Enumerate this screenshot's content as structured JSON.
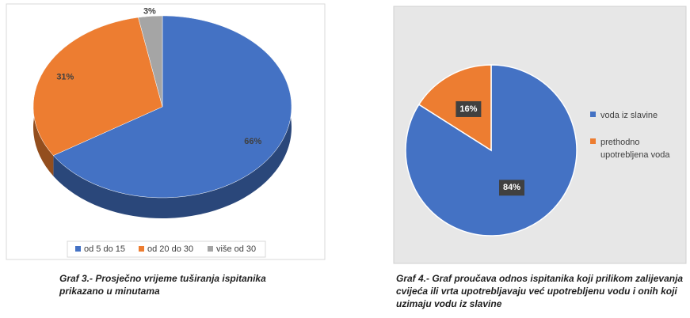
{
  "chart_data": [
    {
      "type": "pie3d",
      "categories": [
        "od 5 do 15",
        "od 20 do 30",
        "više od 30"
      ],
      "values": [
        66,
        31,
        3
      ],
      "value_labels": [
        "66%",
        "31%",
        "3%"
      ],
      "colors": [
        "#4472c4",
        "#ed7d31",
        "#a5a5a5"
      ],
      "legend": "bottom",
      "caption": "Graf 3.- Prosječno vrijeme tuširanja ispitanika prikazano u minutama"
    },
    {
      "type": "pie",
      "categories": [
        "voda iz slavine",
        "prethodno upotrebljena voda"
      ],
      "values": [
        84,
        16
      ],
      "value_labels": [
        "84%",
        "16%"
      ],
      "colors": [
        "#4472c4",
        "#ed7d31"
      ],
      "legend": "right",
      "caption": "Graf 4.- Graf proučava odnos ispitanika koji prilikom zalijevanja cvijeća ili vrta upotrebljavaju već upotrebljenu vodu i onih koji uzimaju vodu iz slavine"
    }
  ]
}
